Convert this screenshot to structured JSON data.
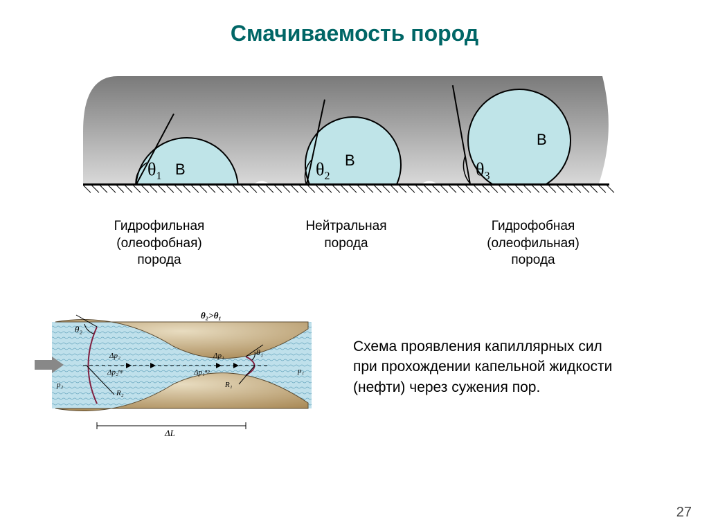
{
  "title": "Смачиваемость пород",
  "title_color": "#006666",
  "diagram": {
    "background_gradient_top": "#7a7a7a",
    "background_gradient_bottom": "#d5d5d5",
    "droplet_fill": "#bfe4e8",
    "droplet_stroke": "#000000",
    "surface_color": "#000000",
    "cases": [
      {
        "theta": "θ",
        "theta_sub": "1",
        "b_label": "В",
        "angle_deg": 35,
        "label_line1": "Гидрофильная",
        "label_line2": "(олеофобная)",
        "label_line3": "порода"
      },
      {
        "theta": "θ",
        "theta_sub": "2",
        "b_label": "В",
        "angle_deg": 15,
        "label_line1": "Нейтральная",
        "label_line2": "порода",
        "label_line3": ""
      },
      {
        "theta": "θ",
        "theta_sub": "3",
        "b_label": "В",
        "angle_deg": -10,
        "label_line1": "Гидрофобная",
        "label_line2": "(олеофильная)",
        "label_line3": "порода"
      }
    ]
  },
  "capillary": {
    "water_fill": "#a8d8e8",
    "pore_fill_top": "#d4c29a",
    "pore_fill_bottom": "#b89968",
    "description": "Схема проявления капиллярных сил при прохождении капельной жидкости (нефти) через сужения пор.",
    "labels": {
      "theta2": "θ₂",
      "theta1": "θ₁",
      "theta_rel": "θ₂>θ₁",
      "dp2": "Δp₂",
      "dp1": "Δp₁",
      "dp2_pr": "Δp₂ⁿᵖ",
      "dp1_pr": "Δp₁ⁿᵖ",
      "r2": "R₂",
      "r1": "R₁",
      "p2": "p₂",
      "p1": "p₁",
      "dl": "ΔL"
    }
  },
  "page_number": "27"
}
